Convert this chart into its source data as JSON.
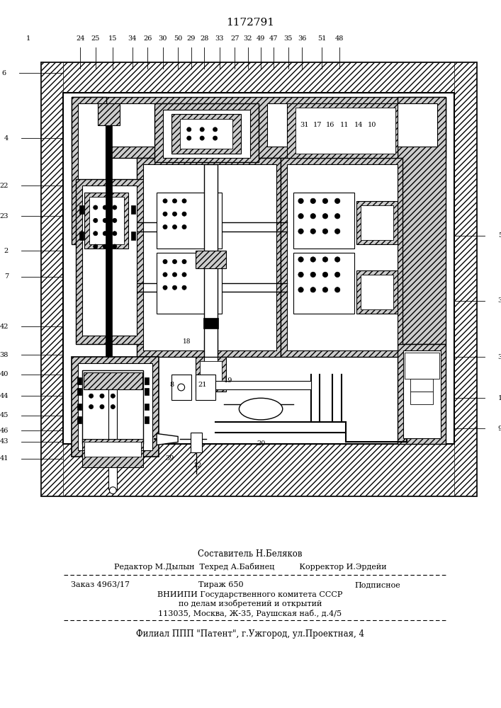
{
  "patent_number": "1172791",
  "footer": {
    "line1": "Составитель Н.Беляков",
    "line2": "Редактор М.Дылын  Техред А.Бабинец          Корректор И.Эрдейи",
    "line3a": "Заказ 4963/17",
    "line3b": "Тираж 650",
    "line3c": "Подписное",
    "line4": "ВНИИПИ Государственного комитета СССР",
    "line5": "по делам изобретений и открытий",
    "line6": "113035, Москва, Ж-35, Раушская наб., д.4/5",
    "line7": "Филиал ППП \"Патент\", г.Ужгород, ул.Проектная, 4"
  }
}
